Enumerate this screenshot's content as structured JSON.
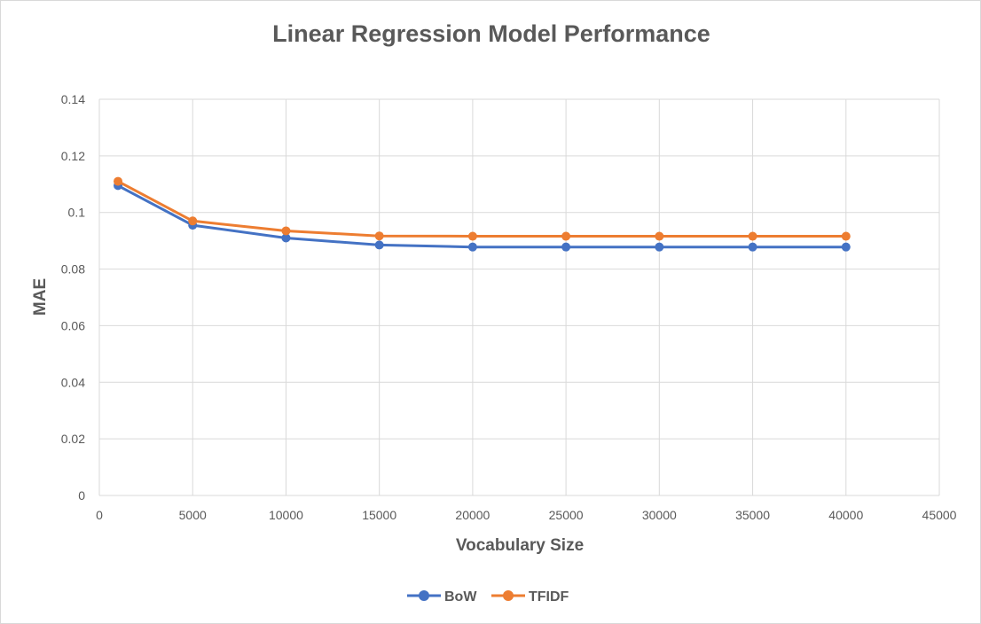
{
  "chart_data": {
    "type": "line",
    "title": "Linear Regression Model Performance",
    "xlabel": "Vocabulary Size",
    "ylabel": "MAE",
    "xlim": [
      0,
      45000
    ],
    "ylim": [
      0,
      0.14
    ],
    "x_ticks": [
      "0",
      "5000",
      "10000",
      "15000",
      "20000",
      "25000",
      "30000",
      "35000",
      "40000",
      "45000"
    ],
    "y_ticks": [
      "0",
      "0.02",
      "0.04",
      "0.06",
      "0.08",
      "0.1",
      "0.12",
      "0.14"
    ],
    "grid": true,
    "legend_position": "bottom",
    "x": [
      1000,
      5000,
      10000,
      15000,
      20000,
      25000,
      30000,
      35000,
      40000
    ],
    "series": [
      {
        "name": "BoW",
        "color": "#4472c4",
        "values": [
          0.1095,
          0.0955,
          0.091,
          0.0885,
          0.0878,
          0.0878,
          0.0878,
          0.0878,
          0.0878
        ]
      },
      {
        "name": "TFIDF",
        "color": "#ed7d31",
        "values": [
          0.111,
          0.097,
          0.0935,
          0.0917,
          0.0916,
          0.0916,
          0.0916,
          0.0916,
          0.0916
        ]
      }
    ]
  }
}
